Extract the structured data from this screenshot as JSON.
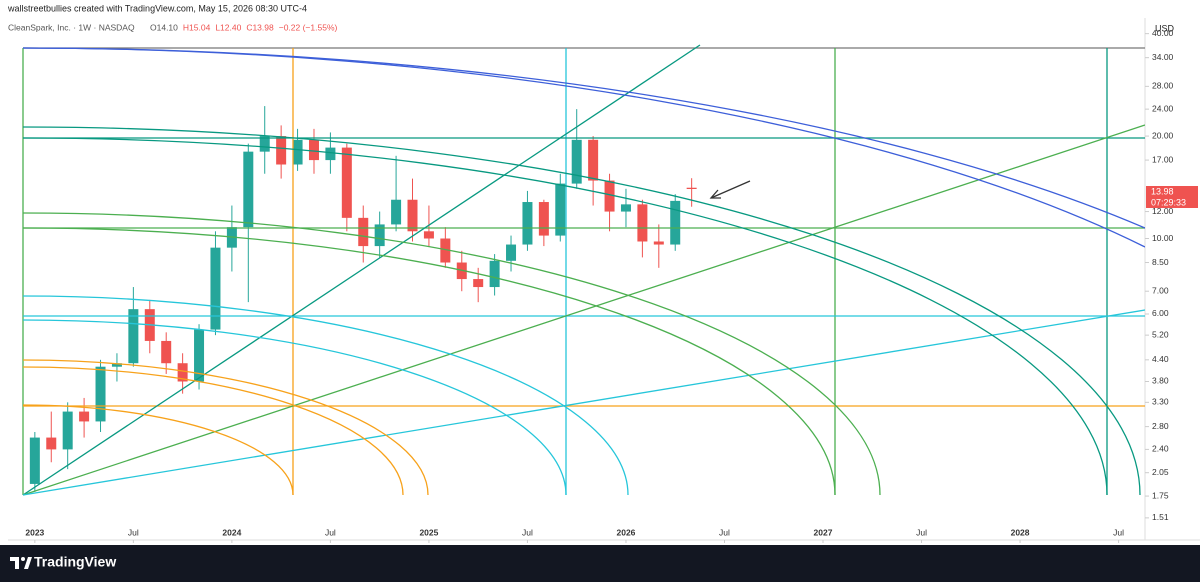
{
  "header": {
    "credit": "wallstreetbullies created with TradingView.com, May 15, 2026 08:30 UTC-4",
    "symbol": "CleanSpark, Inc. · 1W · NASDAQ",
    "ohlc": [
      "O14.10",
      "H15.04",
      "L12.40",
      "C13.98",
      "−0.22 (−1.55%)"
    ],
    "currency": "USD"
  },
  "chart_data": {
    "type": "candlestick",
    "log_scale": true,
    "up_color": "#26a69a",
    "down_color": "#ef5350",
    "x": [
      "2023-01",
      "2023-02",
      "2023-03",
      "2023-04",
      "2023-05",
      "2023-06",
      "2023-07",
      "2023-08",
      "2023-09",
      "2023-10",
      "2023-11",
      "2023-12",
      "2024-01",
      "2024-02",
      "2024-03",
      "2024-04",
      "2024-05",
      "2024-06",
      "2024-07",
      "2024-08",
      "2024-09",
      "2024-10",
      "2024-11",
      "2024-12",
      "2025-01",
      "2025-02",
      "2025-03",
      "2025-04",
      "2025-05",
      "2025-06",
      "2025-07",
      "2025-08",
      "2025-09",
      "2025-10",
      "2025-11",
      "2025-12",
      "2026-01",
      "2026-02",
      "2026-03",
      "2026-04",
      "2026-05"
    ],
    "open": [
      1.9,
      2.6,
      2.4,
      3.1,
      2.9,
      4.2,
      4.3,
      6.2,
      5.0,
      4.3,
      3.8,
      5.4,
      9.4,
      10.8,
      18.0,
      20.0,
      16.5,
      19.5,
      17.0,
      18.5,
      11.5,
      9.5,
      11.0,
      13.0,
      10.5,
      10.0,
      8.5,
      7.6,
      7.2,
      8.6,
      9.6,
      12.8,
      10.2,
      14.5,
      19.5,
      14.8,
      12.0,
      12.6,
      9.8,
      9.6,
      14.1
    ],
    "high": [
      2.7,
      3.1,
      3.3,
      3.4,
      4.4,
      4.6,
      7.2,
      6.6,
      5.3,
      4.6,
      5.6,
      10.5,
      12.5,
      19.0,
      24.5,
      21.5,
      21.0,
      21.0,
      20.5,
      19.0,
      12.5,
      12.0,
      17.5,
      15.0,
      12.5,
      10.8,
      9.2,
      8.2,
      9.0,
      10.2,
      13.8,
      13.0,
      15.5,
      24.0,
      20.0,
      15.5,
      14.0,
      13.0,
      11.0,
      13.5,
      15.04
    ],
    "low": [
      1.8,
      2.2,
      2.1,
      2.6,
      2.7,
      3.8,
      4.2,
      4.6,
      4.0,
      3.5,
      3.6,
      5.2,
      8.0,
      6.5,
      15.5,
      15.0,
      15.8,
      15.5,
      15.5,
      10.5,
      8.5,
      8.8,
      10.5,
      9.8,
      9.5,
      8.2,
      7.0,
      6.5,
      6.8,
      8.0,
      9.2,
      9.5,
      9.8,
      14.0,
      12.5,
      10.5,
      10.8,
      8.8,
      8.2,
      9.2,
      12.4
    ],
    "close": [
      2.6,
      2.4,
      3.1,
      2.9,
      4.2,
      4.3,
      6.2,
      5.0,
      4.3,
      3.8,
      5.4,
      9.4,
      10.8,
      18.0,
      20.0,
      16.5,
      19.5,
      17.0,
      18.5,
      11.5,
      9.5,
      11.0,
      13.0,
      10.5,
      10.0,
      8.5,
      7.6,
      7.2,
      8.6,
      9.6,
      12.8,
      10.2,
      14.5,
      19.5,
      14.8,
      12.0,
      12.6,
      9.8,
      9.6,
      12.9,
      13.98
    ],
    "xlim": [
      "2022-11",
      "2028-08"
    ],
    "xticks": [
      {
        "value": "2023-01",
        "label": "2023"
      },
      {
        "value": "2023-07",
        "label": "Jul"
      },
      {
        "value": "2024-01",
        "label": "2024"
      },
      {
        "value": "2024-07",
        "label": "Jul"
      },
      {
        "value": "2025-01",
        "label": "2025"
      },
      {
        "value": "2025-07",
        "label": "Jul"
      },
      {
        "value": "2026-01",
        "label": "2026"
      },
      {
        "value": "2026-07",
        "label": "Jul"
      },
      {
        "value": "2027-01",
        "label": "2027"
      },
      {
        "value": "2027-07",
        "label": "Jul"
      },
      {
        "value": "2028-01",
        "label": "2028"
      },
      {
        "value": "2028-07",
        "label": "Jul"
      }
    ],
    "ylim": [
      1.3,
      41
    ],
    "yticks": [
      {
        "value": 40,
        "label": "40.00"
      },
      {
        "value": 34,
        "label": "34.00"
      },
      {
        "value": 28,
        "label": "28.00"
      },
      {
        "value": 24,
        "label": "24.00"
      },
      {
        "value": 20,
        "label": "20.00"
      },
      {
        "value": 17,
        "label": "17.00"
      },
      {
        "value": 12,
        "label": "12.00"
      },
      {
        "value": 10,
        "label": "10.00"
      },
      {
        "value": 8.5,
        "label": "8.50"
      },
      {
        "value": 7,
        "label": "7.00"
      },
      {
        "value": 6,
        "label": "6.00"
      },
      {
        "value": 5.2,
        "label": "5.20"
      },
      {
        "value": 4.4,
        "label": "4.40"
      },
      {
        "value": 3.8,
        "label": "3.80"
      },
      {
        "value": 3.3,
        "label": "3.30"
      },
      {
        "value": 2.8,
        "label": "2.80"
      },
      {
        "value": 2.4,
        "label": "2.40"
      },
      {
        "value": 2.05,
        "label": "2.05"
      },
      {
        "value": 1.75,
        "label": "1.75"
      },
      {
        "value": 1.51,
        "label": "1.51"
      }
    ],
    "last_price": {
      "value": 13.98,
      "label": "13.98"
    },
    "countdown": "07:29:33"
  },
  "footer": {
    "brand": "TradingView"
  }
}
